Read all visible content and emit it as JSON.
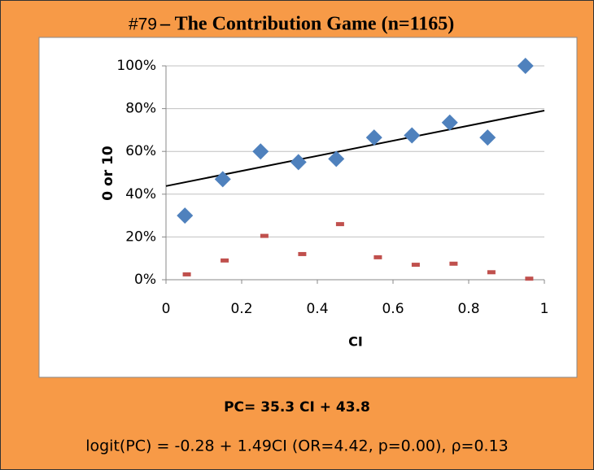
{
  "chart_data": {
    "type": "scatter",
    "title_prefix": "#79",
    "title": "– The Contribution Game (n=1165)",
    "xlabel": "CI",
    "ylabel": "0 or 10",
    "xlim": [
      0,
      1
    ],
    "xticks": [
      0,
      0.2,
      0.4,
      0.6,
      0.8,
      1
    ],
    "ylim": [
      0,
      100
    ],
    "yticks": [
      {
        "value": 0,
        "label": "0%"
      },
      {
        "value": 20,
        "label": "20%"
      },
      {
        "value": 40,
        "label": "40%"
      },
      {
        "value": 60,
        "label": "60%"
      },
      {
        "value": 80,
        "label": "80%"
      },
      {
        "value": 100,
        "label": "100%"
      }
    ],
    "grid": true,
    "series": [
      {
        "marker": "diamond",
        "color": "#4f81bd",
        "x": [
          0.05,
          0.15,
          0.25,
          0.35,
          0.45,
          0.55,
          0.65,
          0.75,
          0.85,
          0.95
        ],
        "values": [
          30,
          47,
          60,
          55,
          56.5,
          66.5,
          67.5,
          73.5,
          66.5,
          100
        ]
      },
      {
        "marker": "dash",
        "color": "#c0504d",
        "x": [
          0.055,
          0.155,
          0.26,
          0.36,
          0.46,
          0.56,
          0.66,
          0.76,
          0.86,
          0.96
        ],
        "values": [
          2.5,
          9,
          20.5,
          12,
          26,
          10.5,
          7,
          7.5,
          3.5,
          0.5
        ]
      }
    ],
    "trendline": {
      "color": "#000000",
      "x": [
        0,
        1
      ],
      "values": [
        43.8,
        79.1
      ]
    },
    "annotations": [
      "PC= 35.3 CI + 43.8",
      "logit(PC) = -0.28 + 1.49CI (OR=4.42, p=0.00), ρ=0.13"
    ]
  }
}
